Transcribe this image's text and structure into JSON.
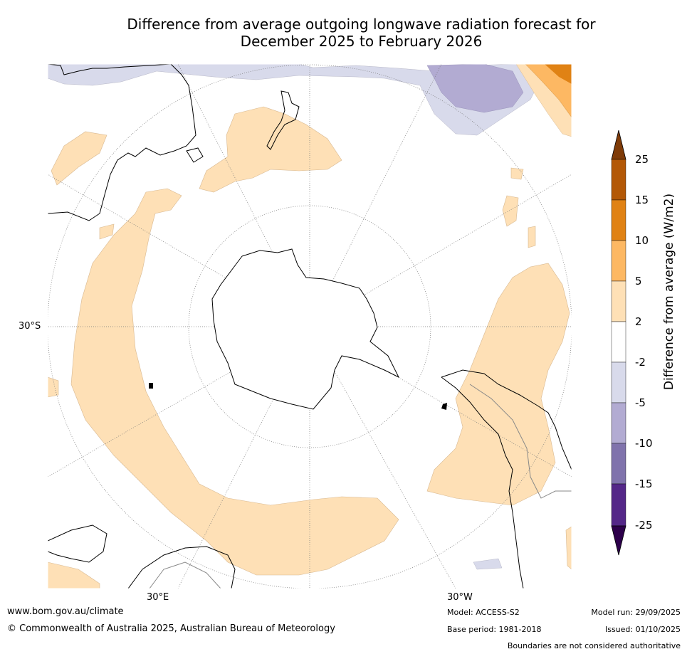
{
  "title_line1": "Difference from average outgoing longwave radiation forecast for",
  "title_line2": "December 2025 to February 2026",
  "colorbar": {
    "title": "Difference from average (W/m2)",
    "ticks": [
      "25",
      "15",
      "10",
      "5",
      "2",
      "-2",
      "-5",
      "-10",
      "-15",
      "-25"
    ],
    "colors": [
      "#7f3b08",
      "#b35806",
      "#e08214",
      "#fdb863",
      "#fee0b6",
      "#ffffff",
      "#d8daeb",
      "#b2abd2",
      "#8073ac",
      "#542788",
      "#2d004b"
    ]
  },
  "axis_labels": {
    "left": "30°S",
    "bottom_left": "30°E",
    "bottom_right": "30°W"
  },
  "footer": {
    "url": "www.bom.gov.au/climate",
    "copyright": "© Commonwealth of Australia 2025, Australian Bureau of Meteorology",
    "model": "Model: ACCESS-S2",
    "base_period": "Base period: 1981-2018",
    "model_run": "Model run: 29/09/2025",
    "issued": "Issued: 01/10/2025",
    "disclaimer": "Boundaries are not considered authoritative"
  }
}
